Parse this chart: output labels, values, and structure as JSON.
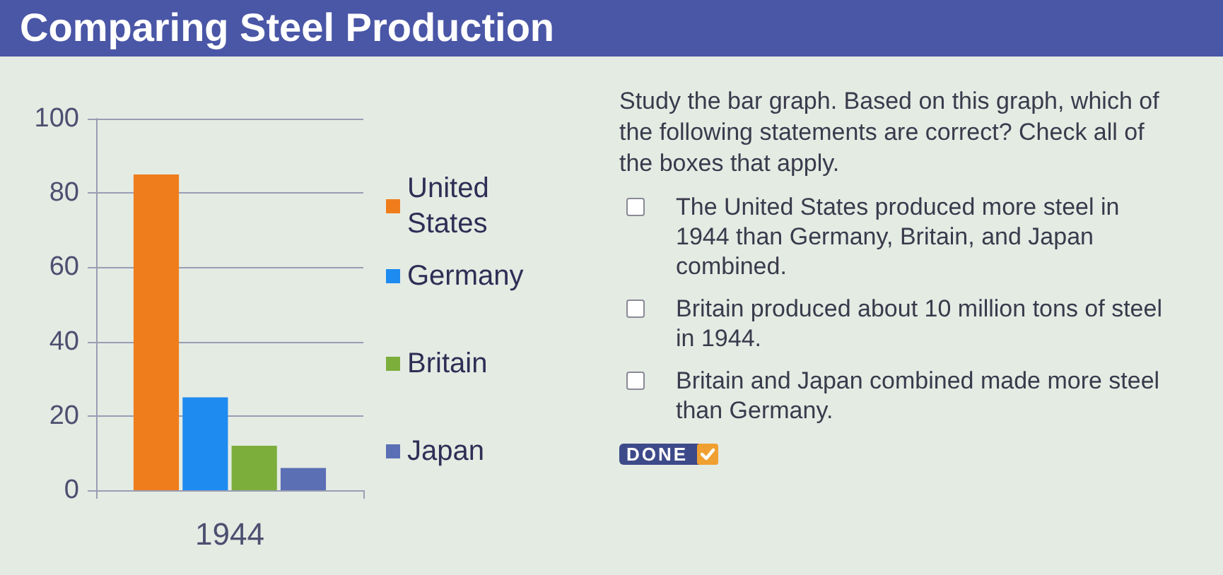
{
  "chart_data": {
    "type": "bar",
    "title": "Comparing Steel Production",
    "categories": [
      "1944"
    ],
    "series": [
      {
        "name": "United States",
        "color": "#ef7d1c",
        "values": [
          85
        ]
      },
      {
        "name": "Germany",
        "color": "#1e8bf0",
        "values": [
          25
        ]
      },
      {
        "name": "Britain",
        "color": "#7cae3c",
        "values": [
          12
        ]
      },
      {
        "name": "Japan",
        "color": "#5b6fb5",
        "values": [
          6
        ]
      }
    ],
    "ylim": [
      0,
      100
    ],
    "yticks": [
      0,
      20,
      40,
      60,
      80,
      100
    ],
    "grid": "y",
    "legend": "right",
    "annotations": [
      "Study the bar graph. Based on this graph, which of the following statements are correct? Check all of the boxes that apply.",
      "The United States produced more steel in 1944 than Germany, Britain, and Japan combined.",
      "Britain produced about 10 million tons of steel in 1944.",
      "Britain and Japan combined made more steel than Germany.",
      "DONE"
    ]
  }
}
